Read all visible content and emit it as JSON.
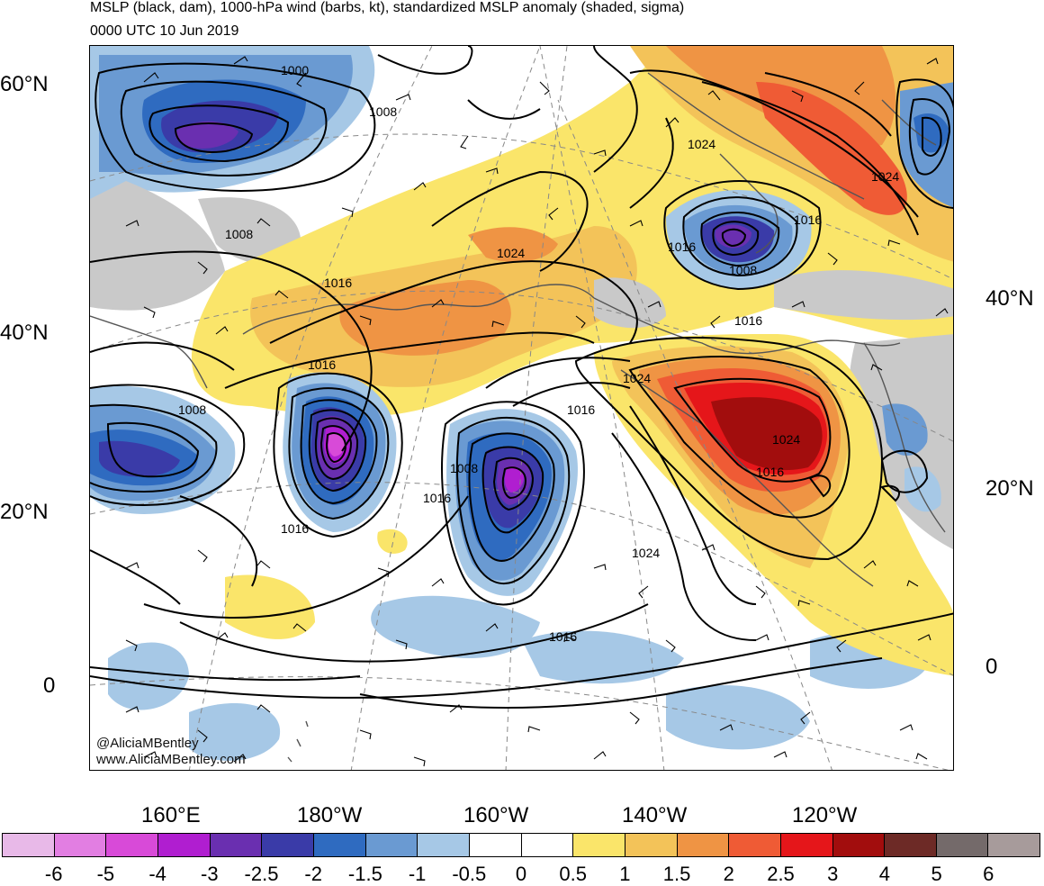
{
  "title": {
    "line1": "MSLP (black, dam), 1000-hPa wind (barbs, kt), standardized MSLP anomaly (shaded, sigma)",
    "line2": "0000 UTC 10 Jun 2019"
  },
  "credit": {
    "twitter": "@AliciaMBentley",
    "website": "www.AliciaMBentley.com"
  },
  "axes": {
    "lat_left": [
      "60°N",
      "40°N",
      "20°N",
      "0"
    ],
    "lat_right": [
      "40°N",
      "20°N",
      "0"
    ],
    "lon_bottom": [
      "160°E",
      "180°W",
      "160°W",
      "140°W",
      "120°W"
    ]
  },
  "isobar_labels": [
    "1000",
    "1008",
    "1008",
    "1016",
    "1024",
    "1024",
    "1024",
    "1016",
    "1016",
    "1008",
    "1016",
    "1016",
    "1008",
    "1024",
    "1016",
    "1008",
    "1016",
    "1016",
    "1016",
    "1024",
    "1024",
    "1016",
    "1016"
  ],
  "colorbar": {
    "labels": [
      "-6",
      "-5",
      "-4",
      "-3",
      "-2.5",
      "-2",
      "-1.5",
      "-1",
      "-0.5",
      "0",
      "0.5",
      "1",
      "1.5",
      "2",
      "2.5",
      "3",
      "4",
      "5",
      "6"
    ],
    "colors": [
      "#e8b9e8",
      "#e27ee2",
      "#d84ad8",
      "#b01ed0",
      "#6a2fb0",
      "#3a3ba8",
      "#2f6bc0",
      "#6a9ad2",
      "#a6c8e6",
      "#ffffff",
      "#ffffff",
      "#fae56a",
      "#f3c359",
      "#ef9444",
      "#ef5b35",
      "#e5161a",
      "#a20d0d",
      "#6d2a26",
      "#746a6a",
      "#a79b9b"
    ]
  },
  "colors": {
    "low_core": "#b01ed0",
    "high_core": "#a20d0d",
    "land_gray": "#c9c9c9",
    "coastline": "#555555",
    "contour": "#000000"
  }
}
